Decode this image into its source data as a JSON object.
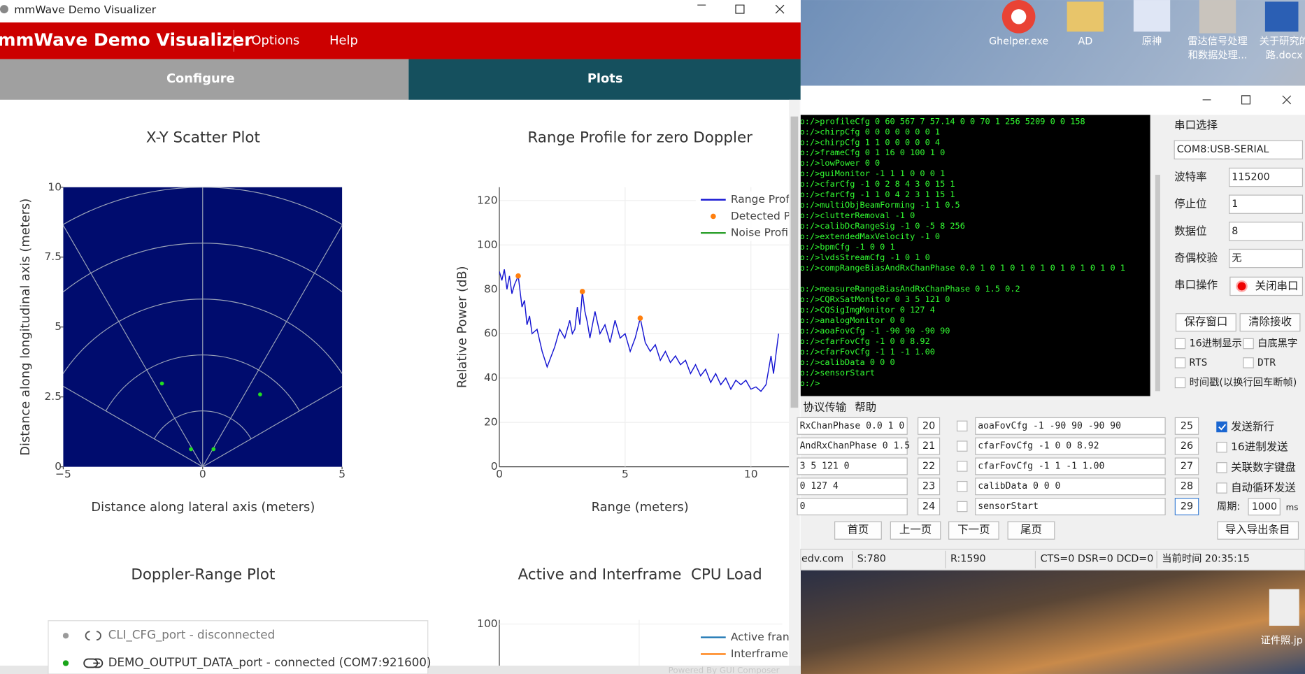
{
  "window": {
    "title": "mmWave Demo Visualizer",
    "app_title": "mmWave Demo Visualizer",
    "menu": [
      "Options",
      "Help"
    ],
    "tabs": [
      "Configure",
      "Plots"
    ]
  },
  "chart_data": [
    {
      "type": "scatter",
      "title": "X-Y Scatter Plot",
      "x_label": "Distance along lateral axis (meters)",
      "y_label": "Distance along longitudinal axis (meters)",
      "xlim": [
        -5,
        5
      ],
      "ylim": [
        0,
        10
      ],
      "xticks": [
        {
          "value": -5,
          "label": "−5"
        },
        0,
        5
      ],
      "yticks": [
        0,
        2.5,
        5,
        7.5,
        10
      ],
      "background": "#000c6e",
      "series": [
        {
          "color": "#22dd22",
          "x": [
            -1.46,
            -0.42,
            0.39,
            2.06
          ],
          "values": [
            2.98,
            0.63,
            0.63,
            2.59
          ]
        }
      ]
    },
    {
      "type": "line",
      "title": "Range Profile for zero Doppler",
      "x_label": "Range (meters)",
      "y_label": "Relative Power (dB)",
      "xlim": [
        0,
        11.15
      ],
      "ylim": [
        0,
        126
      ],
      "xticks": [
        0,
        5,
        10
      ],
      "yticks": [
        0,
        20,
        40,
        60,
        80,
        100,
        120
      ],
      "grid": true,
      "series": [
        {
          "name": "Range Prof",
          "color": "#1414d2",
          "mode": "line",
          "x": [
            0,
            0.1,
            0.2,
            0.3,
            0.4,
            0.5,
            0.6,
            0.75,
            0.9,
            1.0,
            1.1,
            1.2,
            1.3,
            1.5,
            1.7,
            1.9,
            2.0,
            2.2,
            2.4,
            2.6,
            2.8,
            2.9,
            3.0,
            3.1,
            3.2,
            3.3,
            3.4,
            3.5,
            3.6,
            3.8,
            4.0,
            4.2,
            4.4,
            4.6,
            4.8,
            5.0,
            5.2,
            5.4,
            5.6,
            5.8,
            6.0,
            6.2,
            6.4,
            6.6,
            6.8,
            7.0,
            7.2,
            7.4,
            7.6,
            7.8,
            8.0,
            8.2,
            8.4,
            8.6,
            8.8,
            9.0,
            9.2,
            9.4,
            9.6,
            9.8,
            10.0,
            10.2,
            10.4,
            10.6,
            10.8,
            10.9,
            11.1
          ],
          "values": [
            88,
            84,
            89,
            80,
            86,
            78,
            82,
            86,
            72,
            75,
            64,
            68,
            60,
            62,
            52,
            45,
            48,
            54,
            62,
            58,
            66,
            60,
            62,
            72,
            64,
            79,
            70,
            65,
            58,
            70,
            60,
            64,
            56,
            66,
            58,
            60,
            52,
            58,
            67,
            56,
            52,
            55,
            48,
            52,
            47,
            50,
            46,
            48,
            42,
            46,
            41,
            44,
            38,
            42,
            37,
            40,
            35,
            39,
            37,
            39,
            35,
            36,
            34,
            37,
            50,
            42,
            60
          ]
        },
        {
          "name": "Detected P",
          "color": "#ff7f0e",
          "mode": "markers",
          "x": [
            0.75,
            3.3,
            5.6
          ],
          "values": [
            86,
            79,
            67
          ]
        },
        {
          "name": "Noise Profi",
          "color": "#2ca02c",
          "mode": "line",
          "x": [],
          "values": []
        }
      ]
    },
    {
      "type": "heatmap",
      "title": "Doppler-Range Plot"
    },
    {
      "type": "line",
      "title": "Active and Interframe  CPU Load",
      "ylim": [
        0,
        100
      ],
      "yticks": [
        100
      ],
      "series": [
        {
          "name": "Active fran",
          "color": "#1f77b4",
          "values": []
        },
        {
          "name": "Interframe",
          "color": "#ff7f0e",
          "values": []
        }
      ]
    }
  ],
  "status_popup": [
    "CLI_CFG_port - disconnected",
    "DEMO_OUTPUT_DATA_port - connected (COM7:921600)"
  ],
  "footer": "Powered By GUI Composer",
  "desktop": {
    "icons": [
      "Ghelper.exe",
      "AD",
      "原神",
      "雷达信号处理",
      "和数据处理...",
      "关于研究的",
      "路.docx"
    ],
    "bottom_icon": "证件照.jp"
  },
  "serial": {
    "terminal": [
      "o:/>profileCfg 0 60 567 7 57.14 0 0 70 1 256 5209 0 0 158",
      "o:/>chirpCfg 0 0 0 0 0 0 0 1",
      "o:/>chirpCfg 1 1 0 0 0 0 0 4",
      "o:/>frameCfg 0 1 16 0 100 1 0",
      "o:/>lowPower 0 0",
      "o:/>guiMonitor -1 1 1 0 0 0 1",
      "o:/>cfarCfg -1 0 2 8 4 3 0 15 1",
      "o:/>cfarCfg -1 1 0 4 2 3 1 15 1",
      "o:/>multiObjBeamForming -1 1 0.5",
      "o:/>clutterRemoval -1 0",
      "o:/>calibDcRangeSig -1 0 -5 8 256",
      "o:/>extendedMaxVelocity -1 0",
      "o:/>bpmCfg -1 0 0 1",
      "o:/>lvdsStreamCfg -1 0 1 0",
      "o:/>compRangeBiasAndRxChanPhase 0.0 1 0 1 0 1 0 1 0 1 0 1 0 1 0 1",
      "o:/>measureRangeBiasAndRxChanPhase 0 1.5 0.2",
      "o:/>CQRxSatMonitor 0 3 5 121 0",
      "o:/>CQSigImgMonitor 0 127 4",
      "o:/>analogMonitor 0 0",
      "o:/>aoaFovCfg -1 -90 90 -90 90",
      "o:/>cfarFovCfg -1 0 0 8.92",
      "o:/>cfarFovCfg -1 1 -1 1.00",
      "o:/>calibData 0 0 0",
      "o:/>sensorStart",
      "o:/>"
    ],
    "port_label": "串口选择",
    "port": "COM8:USB-SERIAL",
    "fields": [
      {
        "label": "波特率",
        "value": "115200"
      },
      {
        "label": "停止位",
        "value": "1"
      },
      {
        "label": "数据位",
        "value": "8"
      },
      {
        "label": "奇偶校验",
        "value": "无"
      }
    ],
    "op_label": "串口操作",
    "op_button": "关闭串口",
    "buttons": [
      "保存窗口",
      "清除接收"
    ],
    "checks": [
      "16进制显示",
      "白底黑字",
      "RTS",
      "DTR",
      "时间戳(以换行回车断帧)"
    ],
    "tabs": [
      "协议传输",
      "帮助"
    ],
    "commands": [
      {
        "left": "RxChanPhase 0.0 1 0",
        "n": 20,
        "cmd": "aoaFovCfg -1 -90 90 -90 90",
        "m": 25
      },
      {
        "left": "AndRxChanPhase 0 1.5",
        "n": 21,
        "cmd": "cfarFovCfg -1 0 0 8.92",
        "m": 26
      },
      {
        "left": "3 5 121 0",
        "n": 22,
        "cmd": "cfarFovCfg -1 1 -1 1.00",
        "m": 27
      },
      {
        "left": "0 127 4",
        "n": 23,
        "cmd": "calibData 0 0 0",
        "m": 28
      },
      {
        "left": "0",
        "n": 24,
        "cmd": "sensorStart",
        "m": 29
      }
    ],
    "options": [
      "发送新行",
      "16进制发送",
      "关联数字键盘",
      "自动循环发送"
    ],
    "period_label": "周期:",
    "period": 1000,
    "period_unit": "ms",
    "nav": [
      "首页",
      "上一页",
      "下一页",
      "尾页"
    ],
    "import_export": "导入导出条目",
    "status": [
      "edv.com",
      "S:780",
      "R:1590",
      "CTS=0 DSR=0 DCD=0",
      "当前时间 20:35:15"
    ]
  }
}
